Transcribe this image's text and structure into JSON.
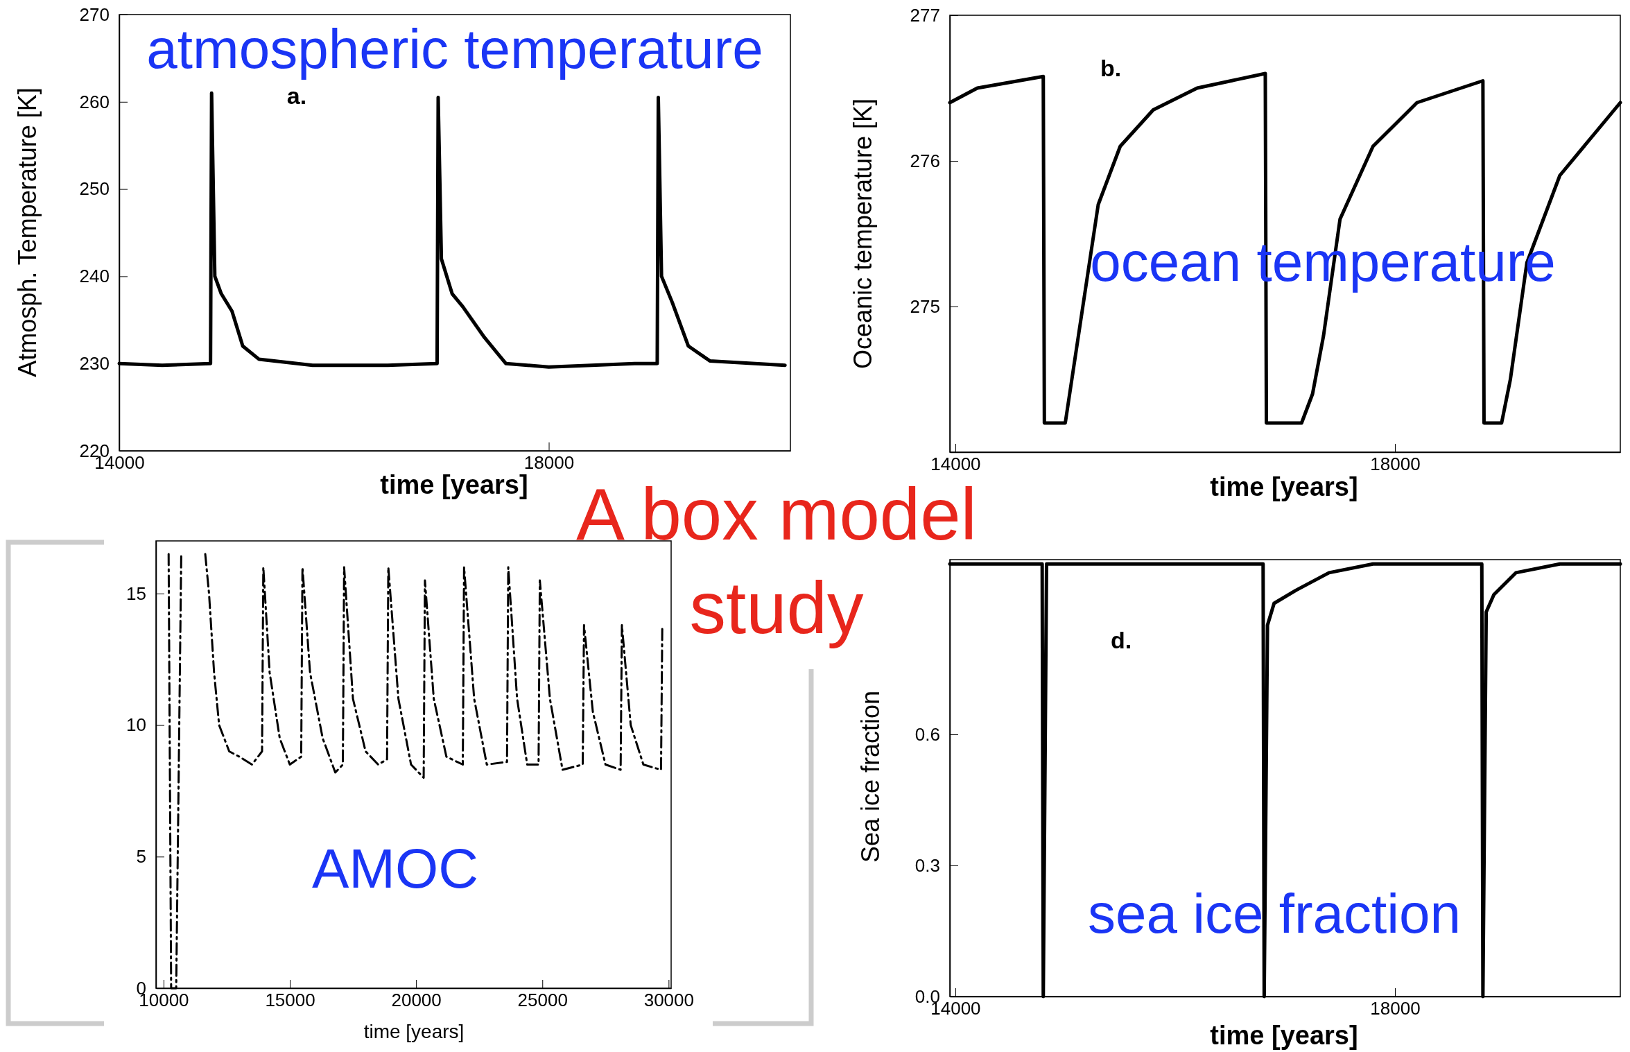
{
  "chart_data": [
    {
      "type": "line",
      "title": "A box model study",
      "xlabel": "time [years]",
      "ylabel": "Atmosph. Temperature [K]",
      "xlim": [
        14000,
        20250
      ],
      "ylim": [
        220,
        270
      ],
      "xticks": [
        14000,
        18000
      ],
      "yticks": [
        220,
        230,
        240,
        250,
        260,
        270
      ],
      "annotations": [
        "atmospheric temperature",
        "a."
      ],
      "series": [
        {
          "color": "#000000",
          "x": [
            14000,
            14400,
            14850,
            14860,
            14890,
            14950,
            15050,
            15150,
            15300,
            15800,
            16500,
            16960,
            16970,
            17000,
            17100,
            17200,
            17400,
            17600,
            18000,
            18800,
            19010,
            19020,
            19050,
            19150,
            19300,
            19500,
            20200
          ],
          "values": [
            230,
            229.8,
            230,
            261,
            240,
            238,
            236,
            232,
            230.5,
            229.8,
            229.8,
            230,
            260.5,
            242,
            238,
            236.5,
            233,
            230,
            229.6,
            230,
            230,
            260.5,
            240,
            237,
            232,
            230.3,
            229.8
          ]
        }
      ]
    },
    {
      "type": "line",
      "xlabel": "time [years]",
      "ylabel": "Oceanic temperature [K]",
      "xlim": [
        13950,
        20050
      ],
      "ylim": [
        274,
        277
      ],
      "xticks": [
        14000,
        18000
      ],
      "yticks": [
        275,
        276,
        277
      ],
      "annotations": [
        "ocean temperature",
        "b."
      ],
      "series": [
        {
          "color": "#000000",
          "x": [
            13950,
            14200,
            14800,
            14810,
            15000,
            15100,
            15300,
            15500,
            15800,
            16200,
            16820,
            16830,
            17150,
            17250,
            17350,
            17500,
            17800,
            18200,
            18800,
            18810,
            18970,
            19050,
            19200,
            19500,
            20050
          ],
          "values": [
            276.4,
            276.5,
            276.58,
            274.2,
            274.2,
            274.7,
            275.7,
            276.1,
            276.35,
            276.5,
            276.6,
            274.2,
            274.2,
            274.4,
            274.8,
            275.6,
            276.1,
            276.4,
            276.55,
            274.2,
            274.2,
            274.5,
            275.3,
            275.9,
            276.4
          ]
        }
      ]
    },
    {
      "type": "line",
      "xlabel": "time [years]",
      "xlim": [
        9700,
        30100
      ],
      "ylim": [
        0,
        17
      ],
      "xticks": [
        10000,
        15000,
        20000,
        25000,
        30000
      ],
      "yticks": [
        0,
        5,
        10,
        15
      ],
      "line_style": "dashed",
      "annotations": [
        "AMOC"
      ],
      "series": [
        {
          "color": "#000000",
          "x": [
            10200,
            10300,
            10500,
            10700,
            10750,
            11650,
            11800,
            12000,
            12200,
            12600,
            13000,
            13500,
            13900,
            13950,
            14200,
            14600,
            15000,
            15450,
            15500,
            15800,
            16300,
            16800,
            17100,
            17150,
            17500,
            18000,
            18500,
            18850,
            18900,
            19300,
            19800,
            20300,
            20350,
            20700,
            21200,
            21850,
            21900,
            22300,
            22800,
            23600,
            23650,
            24000,
            24400,
            24850,
            24900,
            25300,
            25800,
            26600,
            26650,
            27000,
            27500,
            28100,
            28150,
            28500,
            29000,
            29700,
            29750
          ],
          "values": [
            16.5,
            0,
            0,
            16.5,
            null,
            16.5,
            15,
            12,
            10,
            9,
            8.8,
            8.5,
            9,
            16,
            12,
            9.5,
            8.5,
            8.8,
            16,
            12,
            9.5,
            8.2,
            8.5,
            16,
            11,
            9,
            8.5,
            8.7,
            16,
            11,
            8.5,
            8,
            15.5,
            11,
            8.8,
            8.5,
            16,
            11,
            8.5,
            8.6,
            16,
            11,
            8.5,
            8.5,
            15.5,
            11,
            8.3,
            8.5,
            13.8,
            10.5,
            8.5,
            8.3,
            13.8,
            10,
            8.5,
            8.3,
            13.8
          ]
        }
      ]
    },
    {
      "type": "line",
      "xlabel": "time [years]",
      "ylabel": "Sea ice fraction",
      "xlim": [
        13950,
        20050
      ],
      "ylim": [
        0,
        1
      ],
      "xticks": [
        14000,
        18000
      ],
      "yticks": [
        {
          "value": 0,
          "label": "0.0"
        },
        0.3,
        0.6
      ],
      "annotations": [
        "sea ice fraction",
        "d."
      ],
      "series": [
        {
          "color": "#000000",
          "x": [
            13950,
            14790,
            14800,
            14830,
            16800,
            16810,
            16840,
            16900,
            17100,
            17400,
            17800,
            18790,
            18800,
            18830,
            18900,
            19100,
            19500,
            20050
          ],
          "values": [
            0.99,
            0.99,
            0,
            0.99,
            0.99,
            0,
            0.85,
            0.9,
            0.93,
            0.97,
            0.99,
            0.99,
            0,
            0.88,
            0.92,
            0.97,
            0.99,
            0.99
          ]
        }
      ]
    }
  ]
}
